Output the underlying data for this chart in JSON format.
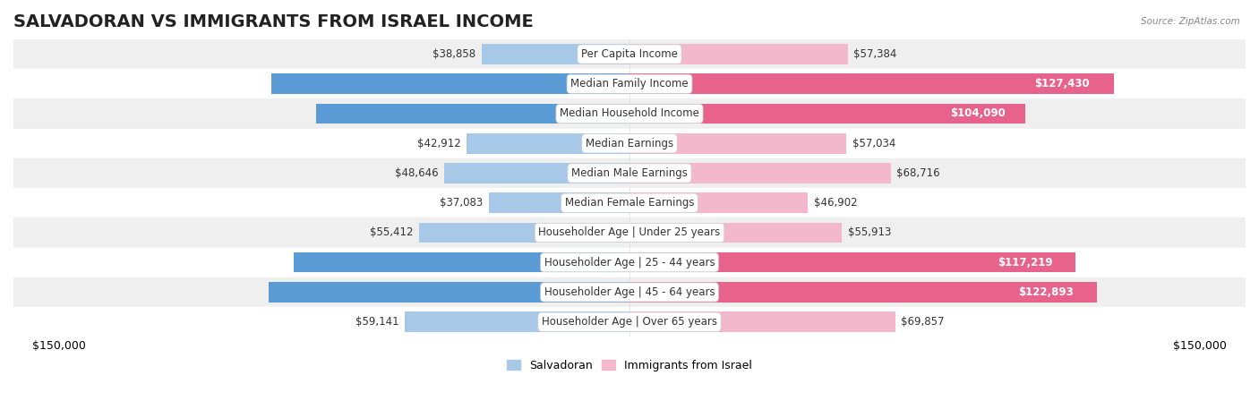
{
  "title": "SALVADORAN VS IMMIGRANTS FROM ISRAEL INCOME",
  "source": "Source: ZipAtlas.com",
  "categories": [
    "Per Capita Income",
    "Median Family Income",
    "Median Household Income",
    "Median Earnings",
    "Median Male Earnings",
    "Median Female Earnings",
    "Householder Age | Under 25 years",
    "Householder Age | 25 - 44 years",
    "Householder Age | 45 - 64 years",
    "Householder Age | Over 65 years"
  ],
  "salvadoran_values": [
    38858,
    94109,
    82449,
    42912,
    48646,
    37083,
    55412,
    88198,
    94842,
    59141
  ],
  "israel_values": [
    57384,
    127430,
    104090,
    57034,
    68716,
    46902,
    55913,
    117219,
    122893,
    69857
  ],
  "salvadoran_color_light": "#a8c8e8",
  "salvadoran_color_dark": "#5b9bd5",
  "israel_color_light": "#f4b8cc",
  "israel_color_dark": "#e8638c",
  "bar_row_bg_even": "#efefef",
  "bar_row_bg_odd": "#ffffff",
  "xlim": 150000,
  "title_fontsize": 14,
  "tick_fontsize": 9,
  "value_fontsize": 8.5,
  "cat_fontsize": 8.5,
  "legend_label_salvadoran": "Salvadoran",
  "legend_label_israel": "Immigrants from Israel",
  "inside_threshold_sal": 75000,
  "inside_threshold_isr": 90000,
  "dark_threshold_sal": 75000,
  "dark_threshold_isr": 90000
}
